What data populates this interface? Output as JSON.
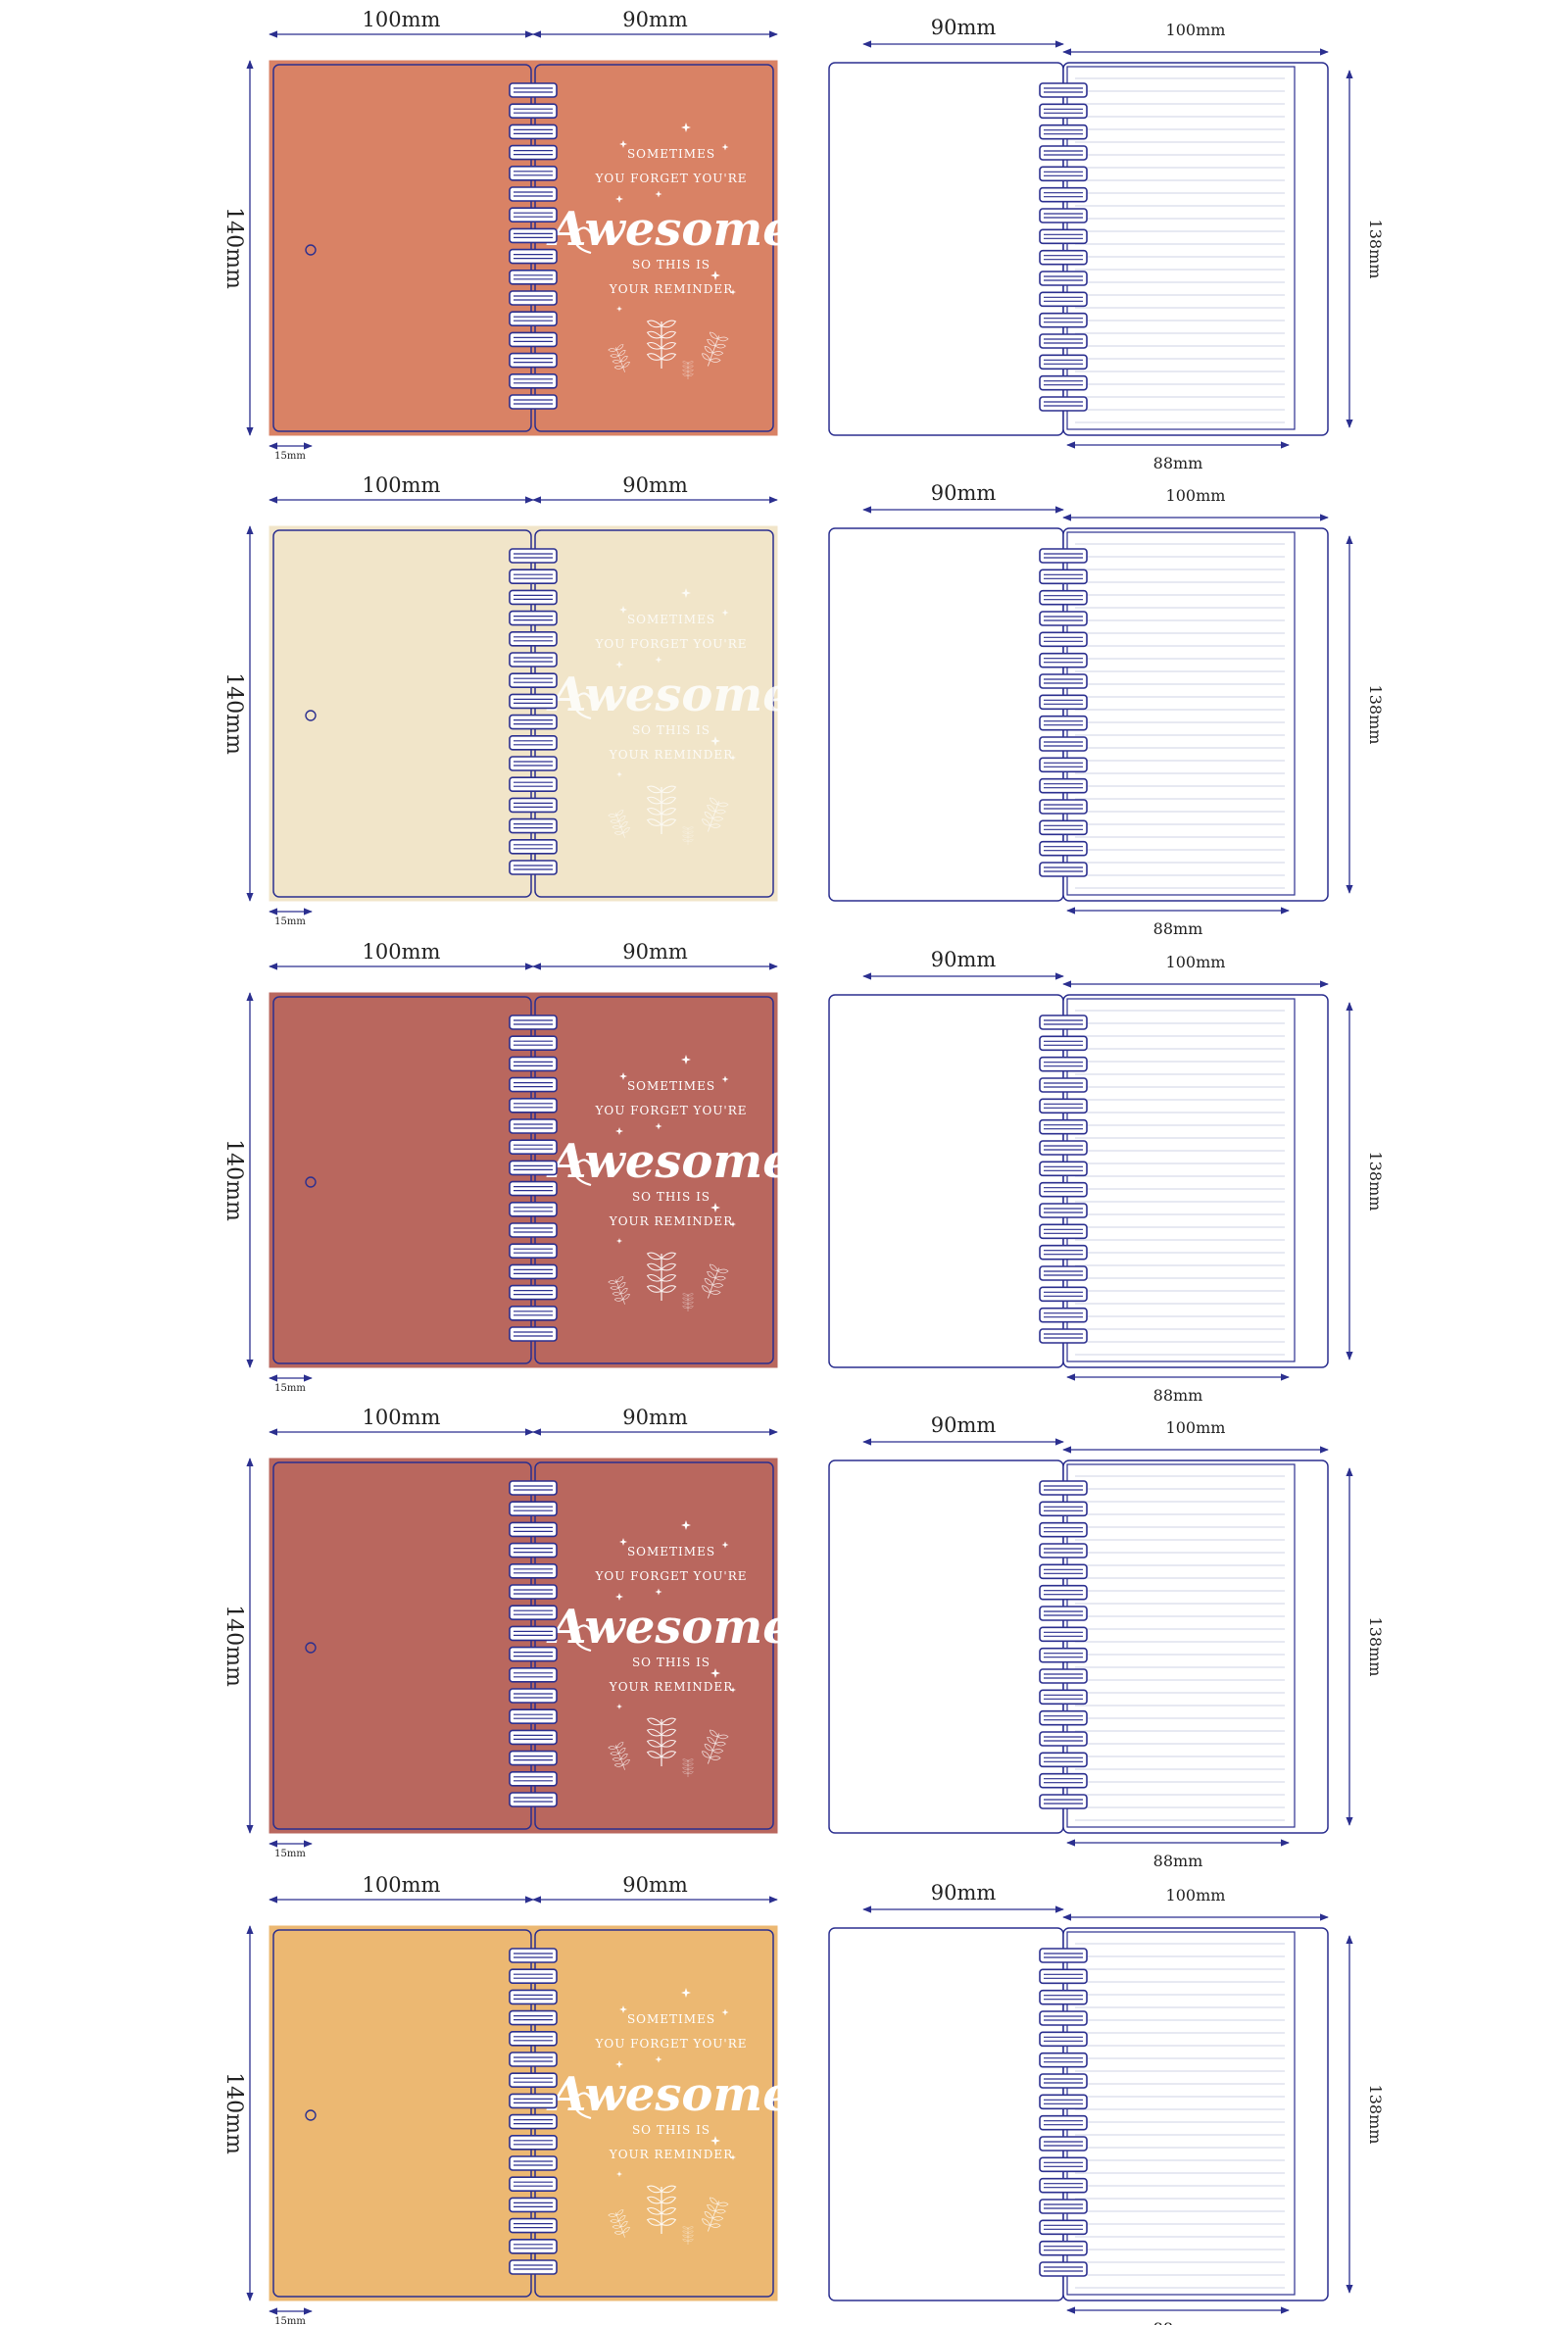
{
  "colors": {
    "line": "#2b2f8f",
    "paper_line": "#cfd3e6",
    "ink": "#ffffff"
  },
  "dimensions": {
    "cover_left_width": "100mm",
    "cover_right_width": "90mm",
    "cover_height": "140mm",
    "hole_offset": "15mm",
    "inner_left_width": "90mm",
    "inner_right_width": "100mm",
    "inner_height": "138mm",
    "inner_page_width": "88mm"
  },
  "quote": {
    "line1": "SOMETIMES",
    "line2": "YOU FORGET YOU'RE",
    "main": "Awesome",
    "line3": "SO THIS IS",
    "line4": "YOUR REMINDER"
  },
  "variants": [
    {
      "name": "terracotta",
      "cover_color": "#d98265",
      "quote_opacity": 1
    },
    {
      "name": "cream",
      "cover_color": "#f1e5c9",
      "quote_opacity": 0.85
    },
    {
      "name": "brick-red",
      "cover_color": "#b9675e",
      "quote_opacity": 1
    },
    {
      "name": "brick-red-alt",
      "cover_color": "#b9675e",
      "quote_opacity": 1
    },
    {
      "name": "mustard",
      "cover_color": "#ecb872",
      "quote_opacity": 1
    }
  ]
}
